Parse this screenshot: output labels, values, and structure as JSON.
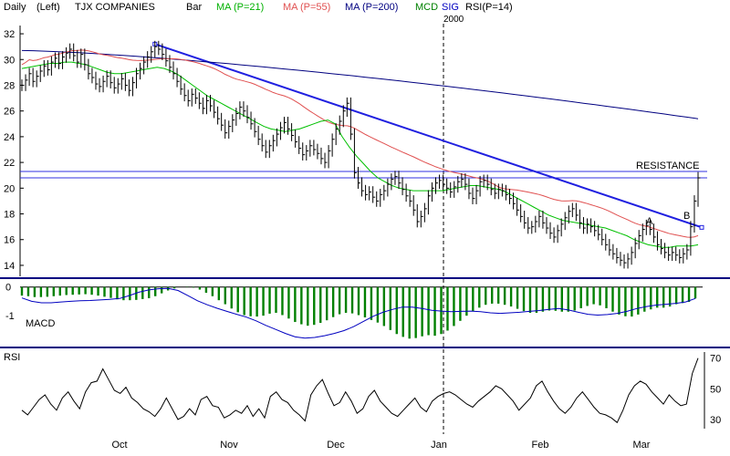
{
  "header": {
    "period": "Daily",
    "scale": "(Left)",
    "symbol": "TJX COMPANIES",
    "style": "Bar",
    "ma21": "MA (P=21)",
    "ma55": "MA (P=55)",
    "ma200": "MA (P=200)",
    "macd": "MCD",
    "sig": "SIG",
    "rsi": "RSI(P=14)",
    "year": "2000"
  },
  "colors": {
    "price": "#000000",
    "ma21": "#00c000",
    "ma55": "#e05050",
    "ma200": "#000080",
    "trendline": "#2020e0",
    "resistance": "#3030e0",
    "macd_hist": "#008000",
    "signal": "#0000c0",
    "separator": "#000080"
  },
  "chart_data": [
    {
      "type": "bar",
      "panel": "price",
      "title": "TJX COMPANIES",
      "ylim": [
        13.5,
        32.5
      ],
      "yticks": [
        14,
        16,
        18,
        20,
        22,
        24,
        26,
        28,
        30,
        32
      ],
      "xlabels": [
        "Oct",
        "Nov",
        "Dec",
        "Jan",
        "Feb",
        "Mar"
      ],
      "resistance_levels": [
        21.3,
        20.8
      ],
      "annotations": [
        "RESISTANCE",
        "A",
        "B"
      ],
      "closes": [
        28.0,
        28.4,
        28.9,
        28.3,
        28.7,
        29.1,
        29.5,
        29.2,
        29.8,
        30.1,
        29.7,
        30.2,
        30.5,
        30.8,
        30.3,
        29.8,
        30.4,
        29.6,
        28.9,
        28.6,
        28.1,
        27.9,
        28.3,
        28.7,
        28.2,
        27.8,
        28.1,
        28.5,
        28.0,
        27.6,
        28.2,
        28.9,
        29.3,
        29.8,
        30.2,
        30.6,
        31.0,
        30.8,
        30.4,
        29.9,
        29.4,
        28.9,
        28.3,
        27.7,
        27.2,
        26.8,
        27.3,
        27.0,
        26.6,
        26.2,
        26.8,
        26.4,
        25.9,
        25.4,
        24.9,
        24.3,
        24.8,
        25.3,
        25.8,
        26.3,
        26.0,
        25.5,
        25.0,
        24.4,
        23.8,
        23.3,
        22.8,
        23.3,
        23.7,
        24.2,
        24.7,
        25.1,
        24.6,
        24.1,
        23.6,
        23.1,
        22.6,
        22.9,
        23.3,
        23.0,
        22.7,
        22.3,
        22.0,
        22.9,
        23.8,
        24.6,
        25.2,
        26.0,
        26.6,
        24.2,
        21.2,
        20.4,
        19.8,
        19.5,
        19.7,
        19.3,
        19.0,
        19.5,
        19.8,
        20.3,
        20.7,
        20.9,
        20.4,
        19.9,
        19.4,
        19.0,
        18.3,
        17.4,
        17.8,
        18.4,
        19.4,
        20.0,
        20.4,
        20.6,
        20.3,
        20.0,
        19.7,
        20.1,
        20.5,
        20.7,
        20.3,
        19.6,
        19.2,
        19.8,
        20.5,
        20.6,
        20.3,
        19.9,
        19.6,
        19.9,
        19.8,
        19.5,
        19.2,
        18.8,
        18.3,
        17.8,
        17.3,
        16.9,
        17.0,
        17.4,
        17.8,
        17.3,
        16.9,
        16.5,
        16.2,
        16.7,
        17.2,
        17.7,
        18.2,
        18.4,
        17.9,
        17.3,
        16.9,
        17.2,
        17.0,
        16.7,
        16.4,
        16.0,
        15.6,
        15.2,
        14.9,
        14.6,
        14.4,
        14.2,
        14.5,
        15.0,
        15.7,
        16.3,
        16.8,
        17.1,
        16.8,
        16.2,
        15.6,
        15.3,
        15.0,
        14.8,
        15.0,
        14.8,
        14.6,
        14.9,
        15.2,
        17.0,
        19.0,
        20.8
      ],
      "ma21": [
        29.3,
        29.4,
        29.5,
        29.6,
        29.7,
        29.7,
        29.8,
        29.8,
        29.7,
        29.6,
        29.4,
        29.2,
        29.0,
        28.9,
        28.9,
        29.0,
        29.1,
        29.2,
        29.3,
        29.4,
        29.3,
        29.1,
        28.8,
        28.4,
        28.0,
        27.6,
        27.2,
        26.9,
        26.6,
        26.3,
        26.0,
        25.7,
        25.4,
        25.1,
        24.8,
        24.6,
        24.5,
        24.4,
        24.5,
        24.6,
        24.8,
        25.0,
        25.2,
        25.3,
        25.0,
        24.0,
        23.2,
        22.5,
        21.9,
        21.3,
        20.8,
        20.5,
        20.2,
        20.0,
        19.9,
        19.8,
        19.8,
        19.8,
        19.8,
        19.8,
        19.9,
        20.0,
        20.1,
        20.2,
        20.2,
        20.1,
        20.0,
        19.9,
        19.7,
        19.4,
        19.1,
        18.8,
        18.5,
        18.2,
        17.9,
        17.7,
        17.5,
        17.4,
        17.3,
        17.2,
        17.1,
        17.0,
        16.9,
        16.7,
        16.5,
        16.3,
        16.0,
        15.8,
        15.6,
        15.5,
        15.4,
        15.4,
        15.5,
        15.5,
        15.5,
        15.6
      ]
    },
    {
      "type": "bar",
      "panel": "macd",
      "ylim": [
        -1.95,
        0.15
      ],
      "yticks": [
        0,
        -1
      ],
      "xlabel": "MACD",
      "histogram": [
        -0.3,
        -0.32,
        -0.35,
        -0.35,
        -0.34,
        -0.32,
        -0.3,
        -0.28,
        -0.27,
        -0.26,
        -0.25,
        -0.27,
        -0.3,
        -0.34,
        -0.38,
        -0.43,
        -0.46,
        -0.46,
        -0.45,
        -0.42,
        -0.39,
        -0.32,
        -0.22,
        -0.12,
        -0.05,
        0.0,
        0.01,
        -0.02,
        -0.09,
        -0.2,
        -0.32,
        -0.46,
        -0.6,
        -0.75,
        -0.88,
        -0.98,
        -1.02,
        -1.03,
        -1.0,
        -0.93,
        -0.9,
        -0.98,
        -1.1,
        -1.22,
        -1.3,
        -1.35,
        -1.32,
        -1.25,
        -1.16,
        -1.05,
        -0.95,
        -0.9,
        -0.92,
        -0.98,
        -1.06,
        -1.15,
        -1.24,
        -1.36,
        -1.5,
        -1.64,
        -1.74,
        -1.8,
        -1.78,
        -1.72,
        -1.68,
        -1.7,
        -1.64,
        -1.52,
        -1.36,
        -1.18,
        -1.0,
        -0.84,
        -0.72,
        -0.62,
        -0.58,
        -0.58,
        -0.62,
        -0.68,
        -0.76,
        -0.84,
        -0.9,
        -0.9,
        -0.86,
        -0.82,
        -0.83,
        -0.86,
        -0.86,
        -0.82,
        -0.74,
        -0.66,
        -0.6,
        -0.64,
        -0.74,
        -0.86,
        -0.96,
        -1.02,
        -1.03,
        -0.96,
        -0.86,
        -0.78,
        -0.72,
        -0.72,
        -0.68,
        -0.6,
        -0.56,
        -0.52,
        -0.4
      ],
      "signal": [
        -0.38,
        -0.5,
        -0.55,
        -0.55,
        -0.52,
        -0.5,
        -0.48,
        -0.47,
        -0.45,
        -0.43,
        -0.4,
        -0.3,
        -0.18,
        -0.1,
        -0.06,
        -0.05,
        -0.12,
        -0.3,
        -0.48,
        -0.62,
        -0.74,
        -0.85,
        -0.95,
        -1.05,
        -1.18,
        -1.34,
        -1.48,
        -1.62,
        -1.74,
        -1.78,
        -1.76,
        -1.7,
        -1.62,
        -1.52,
        -1.38,
        -1.2,
        -1.02,
        -0.88,
        -0.78,
        -0.7,
        -0.7,
        -0.75,
        -0.81,
        -0.84,
        -0.86,
        -0.85,
        -0.84,
        -0.86,
        -0.9,
        -0.92,
        -0.9,
        -0.88,
        -0.85,
        -0.82,
        -0.78,
        -0.75,
        -0.8,
        -0.88,
        -0.95,
        -0.98,
        -0.96,
        -0.92,
        -0.85,
        -0.75,
        -0.68,
        -0.63,
        -0.6,
        -0.57,
        -0.52,
        -0.4
      ]
    },
    {
      "type": "line",
      "panel": "rsi",
      "title": "RSI",
      "ylim": [
        24,
        74
      ],
      "yticks": [
        70,
        50,
        30
      ],
      "values": [
        36,
        33,
        38,
        43,
        46,
        40,
        36,
        44,
        48,
        42,
        37,
        48,
        54,
        55,
        63,
        56,
        49,
        47,
        51,
        44,
        41,
        37,
        35,
        32,
        37,
        44,
        37,
        30,
        32,
        37,
        33,
        43,
        45,
        39,
        38,
        31,
        33,
        36,
        34,
        39,
        32,
        37,
        31,
        45,
        48,
        43,
        41,
        36,
        33,
        29,
        46,
        52,
        56,
        47,
        39,
        41,
        48,
        42,
        34,
        37,
        45,
        49,
        42,
        38,
        34,
        32,
        36,
        40,
        44,
        38,
        35,
        42,
        45,
        47,
        48,
        46,
        43,
        40,
        38,
        42,
        45,
        48,
        52,
        50,
        46,
        42,
        36,
        40,
        44,
        52,
        55,
        48,
        42,
        37,
        34,
        38,
        44,
        48,
        43,
        38,
        34,
        33,
        31,
        28,
        36,
        46,
        52,
        55,
        53,
        48,
        44,
        40,
        46,
        42,
        39,
        40,
        60,
        70
      ]
    }
  ]
}
